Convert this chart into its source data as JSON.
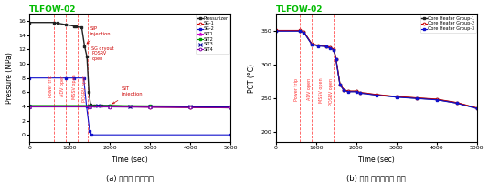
{
  "title": "TLFOW-02",
  "left_ylabel": "Pressure (MPa)",
  "left_xlabel": "Time (sec)",
  "right_ylabel": "PCT (°C)",
  "right_xlabel": "Time (sec)",
  "xlim": [
    0,
    5000
  ],
  "left_ylim": [
    -1,
    17
  ],
  "right_ylim": [
    185,
    375
  ],
  "left_yticks": [
    0,
    2,
    4,
    6,
    8,
    10,
    12,
    14,
    16
  ],
  "right_yticks": [
    200,
    250,
    300,
    350
  ],
  "xticks": [
    0,
    1000,
    2000,
    3000,
    4000,
    5000
  ],
  "vlines": [
    600,
    900,
    1200,
    1450
  ],
  "vline_labels": [
    "Power trip",
    "ADV open",
    "MSSV open",
    "POSRV open"
  ],
  "caption_left": "(a) 계통의 압력변화",
  "caption_right": "(b) 노심 최대온도의 변화",
  "left_legend": [
    "Pressurizer",
    "SG-1",
    "SG-2",
    "SIT1",
    "SIT2",
    "SIT3",
    "SIT4"
  ],
  "right_legend": [
    "Core Heater Group-1",
    "Core Heater Group-2",
    "Core Heater Group-3"
  ],
  "title_color": "#00bb00",
  "vline_color": "#ff3333",
  "annotation_color": "#cc0000",
  "pressurizer_color": "#222222",
  "sg1_color": "#cc0000",
  "sg2_color": "#1111cc",
  "sit1_color": "#cc00cc",
  "sit2_color": "#009900",
  "sit3_color": "#000099",
  "sit4_color": "#8800aa",
  "ch1_color": "#222222",
  "ch2_color": "#cc0000",
  "ch3_color": "#1111cc"
}
